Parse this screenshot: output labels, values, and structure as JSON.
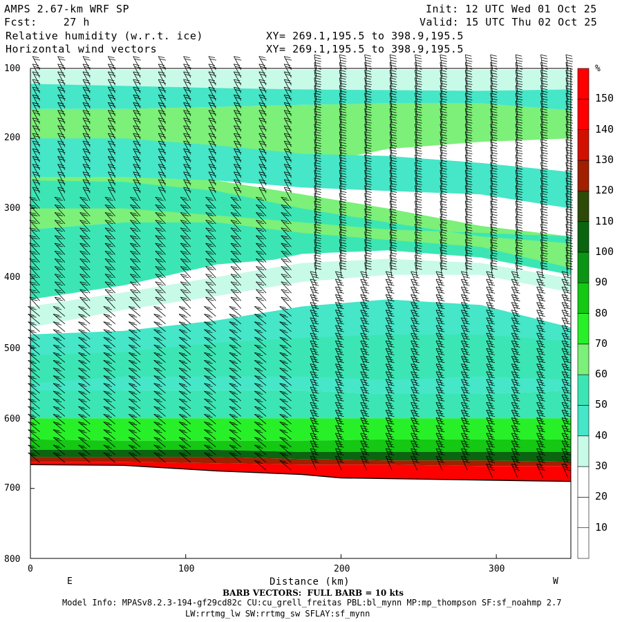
{
  "header": {
    "model": "AMPS 2.67-km WRF SP",
    "forecast": "Fcst:    27 h",
    "field1": "Relative humidity (w.r.t. ice)",
    "field2": "Horizontal wind vectors",
    "init": "Init: 12 UTC Wed 01 Oct 25",
    "valid": "Valid: 15 UTC Thu 02 Oct 25",
    "xy1": "XY= 269.1,195.5 to 398.9,195.5",
    "xy2": "XY= 269.1,195.5 to 398.9,195.5"
  },
  "footer": {
    "barb_note": "BARB VECTORS:  FULL BARB = 10 kts",
    "model_info": "Model Info: MPASv8.2.3-194-gf29cd82c CU:cu_grell_freitas PBL:bl_mynn MP:mp_thompson SF:sf_noahmp 2.7",
    "physics": "LW:rrtmg_lw SW:rrtmg_sw SFLAY:sf_mynn",
    "left_end": "E",
    "right_end": "W"
  },
  "chart_data": {
    "type": "heatmap",
    "title": "Relative humidity (w.r.t. ice)",
    "overlay": "Horizontal wind vectors",
    "xlabel": "Distance (km)",
    "ylabel": "",
    "xlim": [
      0,
      348
    ],
    "ylim": [
      800,
      100
    ],
    "x_ticks": [
      "0",
      "100",
      "200",
      "300"
    ],
    "y_ticks": [
      "100",
      "200",
      "300",
      "400",
      "500",
      "600",
      "700",
      "800"
    ],
    "colorbar": {
      "unit": "%",
      "labels": [
        "150",
        "140",
        "130",
        "120",
        "110",
        "100",
        "90",
        "80",
        "70",
        "60",
        "50",
        "40",
        "30",
        "20",
        "10"
      ],
      "levels": [
        0,
        10,
        20,
        30,
        40,
        50,
        60,
        70,
        80,
        90,
        100,
        110,
        120,
        130,
        140,
        150,
        160
      ],
      "colors": [
        "#ffffff",
        "#ffffff",
        "#ffffff",
        "#c8fae8",
        "#46e6c8",
        "#3ce6b4",
        "#7cf078",
        "#28f028",
        "#14c814",
        "#0a9614",
        "#0a6410",
        "#2d4a08",
        "#a02000",
        "#d21000",
        "#ff0000",
        "#ff0000"
      ]
    },
    "rh_profile": [
      {
        "p": 110,
        "rh": 35
      },
      {
        "p": 150,
        "rh": 40
      },
      {
        "p": 200,
        "rh": 55
      },
      {
        "p": 300,
        "rh": 60
      },
      {
        "p": 400,
        "rh": 30
      },
      {
        "p": 500,
        "rh": 40
      },
      {
        "p": 600,
        "rh": 80
      },
      {
        "p": 650,
        "rh": 105
      },
      {
        "p": 670,
        "rh": 140
      }
    ],
    "terrain_pressure": [
      {
        "x": 0,
        "p": 666
      },
      {
        "x": 60,
        "p": 667
      },
      {
        "x": 120,
        "p": 675
      },
      {
        "x": 175,
        "p": 680
      },
      {
        "x": 200,
        "p": 685
      },
      {
        "x": 348,
        "p": 690
      }
    ]
  }
}
